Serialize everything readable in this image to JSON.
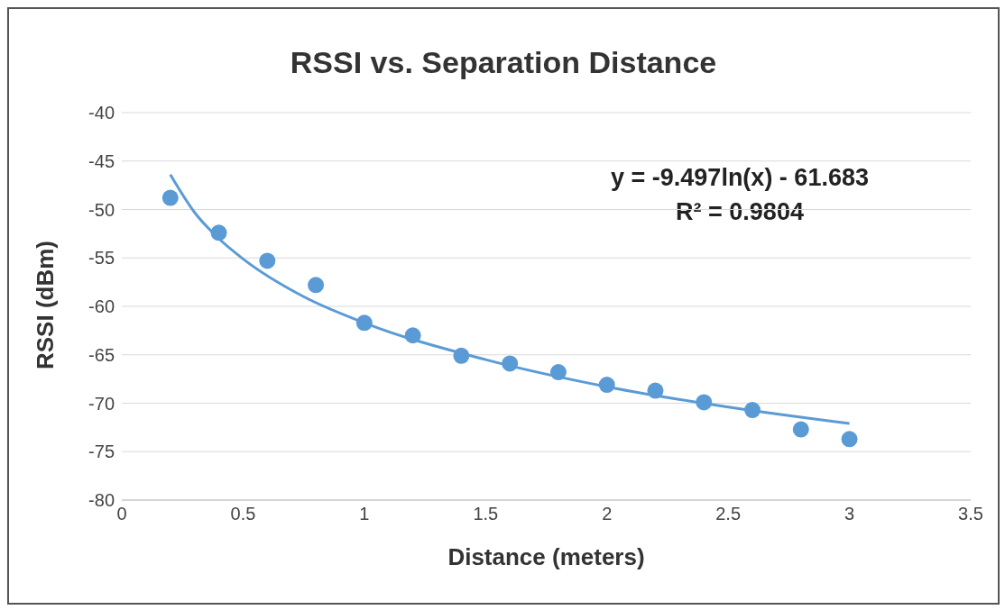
{
  "chart_data": {
    "type": "scatter",
    "title": "RSSI vs. Separation Distance",
    "xlabel": "Distance (meters)",
    "ylabel": "RSSI (dBm)",
    "xlim": [
      0,
      3.5
    ],
    "xticks": [
      0,
      0.5,
      1,
      1.5,
      2,
      2.5,
      3,
      3.5
    ],
    "ylim": [
      -80,
      -40
    ],
    "yticks": [
      -80,
      -75,
      -70,
      -65,
      -60,
      -55,
      -50,
      -45,
      -40
    ],
    "grid": "y",
    "marker": "circle",
    "legend": false,
    "annotations": [
      "y = -9.497ln(x) - 61.683",
      "R² = 0.9804"
    ],
    "series": [
      {
        "type": "scatter",
        "color": "#5b9bd5",
        "x": [
          0.2,
          0.4,
          0.6,
          0.8,
          1.0,
          1.2,
          1.4,
          1.6,
          1.8,
          2.0,
          2.2,
          2.4,
          2.6,
          2.8,
          3.0
        ],
        "values": [
          -48.8,
          -52.4,
          -55.3,
          -57.8,
          -61.7,
          -63.0,
          -65.1,
          -65.9,
          -66.8,
          -68.1,
          -68.7,
          -69.9,
          -70.7,
          -72.7,
          -73.7
        ]
      },
      {
        "type": "line",
        "color": "#5b9bd5",
        "marker": "none",
        "x": [
          0.2,
          0.3,
          0.4,
          0.5,
          0.75,
          1,
          1.5,
          2,
          2.5,
          3
        ],
        "values": [
          -46.4,
          -50.3,
          -53.0,
          -55.1,
          -59.0,
          -61.7,
          -65.5,
          -68.3,
          -70.4,
          -72.1
        ]
      }
    ]
  }
}
